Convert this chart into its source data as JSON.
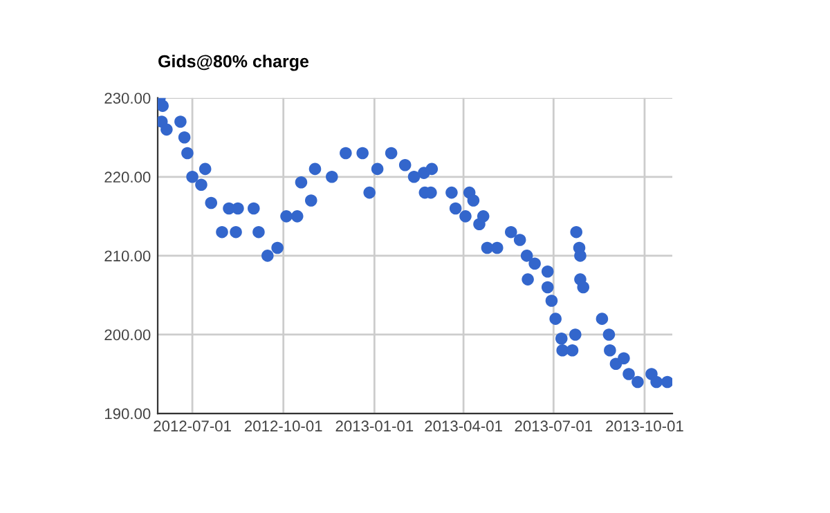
{
  "chart_data": {
    "type": "scatter",
    "title": "Gids@80% charge",
    "marker": "circle",
    "grid": true,
    "xlim": [
      "2012-05-27",
      "2013-10-29"
    ],
    "xticks": [
      "2012-07-01",
      "2012-10-01",
      "2013-01-01",
      "2013-04-01",
      "2013-07-01",
      "2013-10-01"
    ],
    "ylim": [
      190,
      230
    ],
    "yticks": [
      {
        "value": 190,
        "label": "190.00"
      },
      {
        "value": 200,
        "label": "200.00"
      },
      {
        "value": 210,
        "label": "210.00"
      },
      {
        "value": 220,
        "label": "220.00"
      },
      {
        "value": 230,
        "label": "230.00"
      }
    ],
    "series": [
      {
        "color": "#3366cc",
        "x": [
          "2012-05-29",
          "2012-05-31",
          "2012-06-01",
          "2012-06-05",
          "2012-06-19",
          "2012-06-23",
          "2012-06-26",
          "2012-07-01",
          "2012-07-10",
          "2012-07-14",
          "2012-07-20",
          "2012-07-31",
          "2012-08-07",
          "2012-08-14",
          "2012-08-16",
          "2012-09-01",
          "2012-09-06",
          "2012-09-15",
          "2012-09-25",
          "2012-10-04",
          "2012-10-15",
          "2012-10-19",
          "2012-10-29",
          "2012-11-02",
          "2012-11-19",
          "2012-12-03",
          "2012-12-20",
          "2012-12-27",
          "2013-01-04",
          "2013-01-18",
          "2013-02-01",
          "2013-02-10",
          "2013-02-20",
          "2013-02-21",
          "2013-02-27",
          "2013-02-28",
          "2013-03-20",
          "2013-03-24",
          "2013-04-03",
          "2013-04-07",
          "2013-04-11",
          "2013-04-17",
          "2013-04-21",
          "2013-04-25",
          "2013-05-05",
          "2013-05-19",
          "2013-05-28",
          "2013-06-04",
          "2013-06-05",
          "2013-06-12",
          "2013-06-25",
          "2013-06-25",
          "2013-06-29",
          "2013-07-03",
          "2013-07-09",
          "2013-07-10",
          "2013-07-20",
          "2013-07-23",
          "2013-07-24",
          "2013-07-27",
          "2013-07-28",
          "2013-07-28",
          "2013-07-31",
          "2013-08-19",
          "2013-08-26",
          "2013-08-27",
          "2013-09-02",
          "2013-09-10",
          "2013-09-15",
          "2013-09-24",
          "2013-10-08",
          "2013-10-13",
          "2013-10-24"
        ],
        "values": [
          230,
          227,
          229,
          226,
          227,
          225,
          223,
          220,
          219,
          221,
          216.7,
          213,
          216,
          213,
          216,
          216,
          213,
          210,
          211,
          215,
          215,
          219.3,
          217,
          221,
          220,
          223,
          223,
          218,
          221,
          223,
          221.5,
          220,
          220.5,
          218,
          218,
          221,
          218,
          216,
          215,
          218,
          217,
          214,
          215,
          211,
          211,
          213,
          212,
          210,
          207,
          209,
          208,
          206,
          204.3,
          202,
          199.5,
          198,
          198,
          200,
          213,
          211,
          210,
          207,
          206,
          202,
          200,
          198,
          196.3,
          197,
          195,
          194,
          195,
          194,
          194
        ]
      }
    ]
  }
}
